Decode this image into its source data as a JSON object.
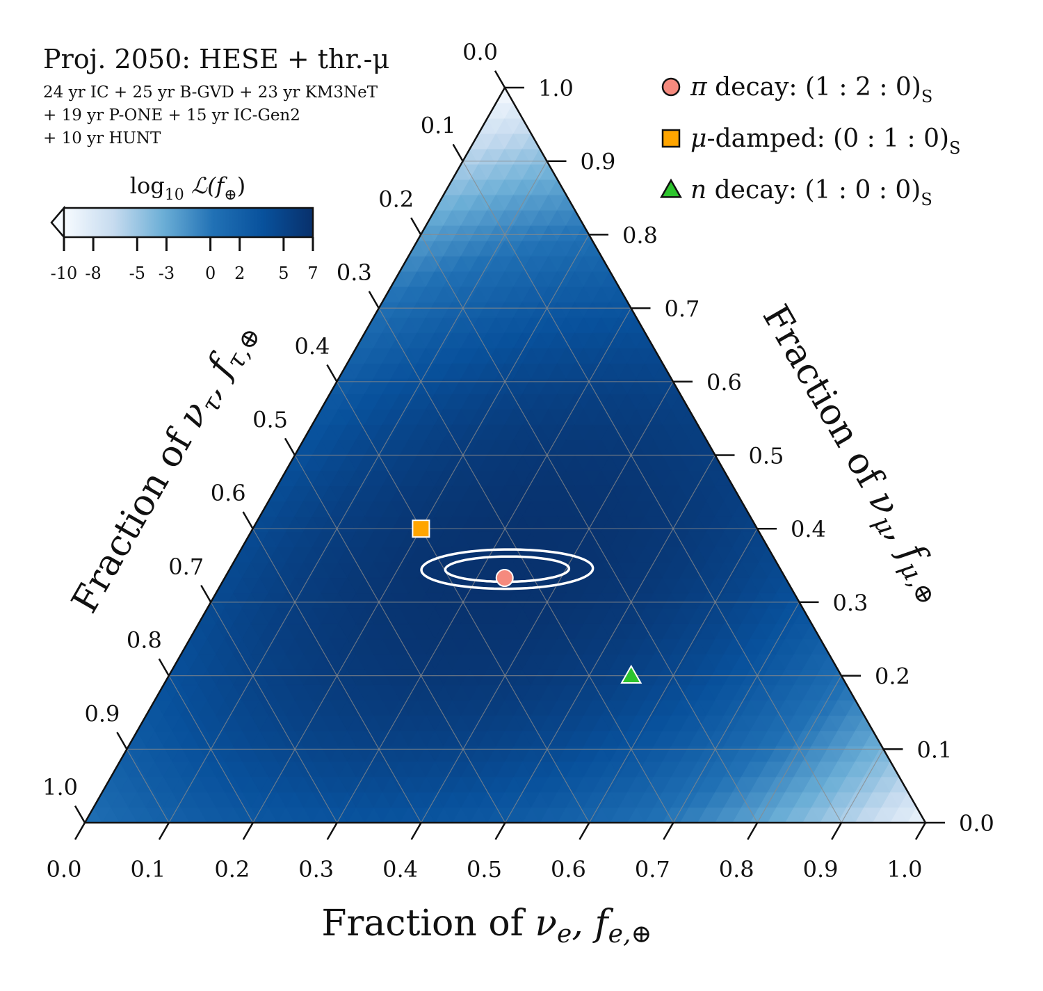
{
  "chart_data": {
    "type": "ternary",
    "title": "Proj. 2050: HESE + thr.-μ",
    "subtitle_lines": [
      "24 yr IC + 25 yr B-GVD + 23 yr KM3NeT",
      "+ 19 yr P-ONE + 15 yr IC-Gen2",
      "+ 10 yr HUNT"
    ],
    "axes": {
      "bottom": {
        "prefix": "Fraction of ",
        "symbol": "ν",
        "sub": "e",
        "mid": ", f",
        "sub2": "e,⊕",
        "range": [
          0,
          1
        ]
      },
      "right": {
        "prefix": "Fraction of ",
        "symbol": "ν",
        "sub": "μ",
        "mid": ", f",
        "sub2": "μ,⊕",
        "range": [
          0,
          1
        ]
      },
      "left": {
        "prefix": "Fraction of ",
        "symbol": "ν",
        "sub": "τ",
        "mid": ", f",
        "sub2": "τ,⊕",
        "range": [
          0,
          1
        ]
      }
    },
    "tick_labels": [
      "0.0",
      "0.1",
      "0.2",
      "0.3",
      "0.4",
      "0.5",
      "0.6",
      "0.7",
      "0.8",
      "0.9",
      "1.0"
    ],
    "colorbar": {
      "title_prefix": "log",
      "title_sub": "10",
      "title_rest": " ℒ(f",
      "title_sub2": "⊕",
      "title_end": ")",
      "range": [
        -10,
        7
      ],
      "ticks": [
        -10,
        -8,
        -5,
        -3,
        0,
        2,
        5,
        7
      ],
      "tick_labels": [
        "-10",
        "-8",
        "-5",
        "-3",
        "0",
        "2",
        "5",
        "7"
      ],
      "colors": [
        "#f7fbff",
        "#c6dbef",
        "#6baed6",
        "#2171b5",
        "#08519c",
        "#08306b"
      ]
    },
    "markers": [
      {
        "name": "pi-decay",
        "label_sym": "π",
        "label_text": " decay: (1 : 2 : 0)",
        "label_sub": "S",
        "shape": "circle",
        "color": "#f58a7e",
        "fe": 0.333,
        "fmu": 0.333,
        "ftau": 0.333
      },
      {
        "name": "mu-damped",
        "label_sym": "μ",
        "label_text": "-damped: (0 : 1 : 0)",
        "label_sub": "S",
        "shape": "square",
        "color": "#ffa500",
        "fe": 0.2,
        "fmu": 0.4,
        "ftau": 0.4
      },
      {
        "name": "n-decay",
        "label_sym": "n",
        "label_text": " decay: (1 : 0 : 0)",
        "label_sub": "S",
        "shape": "triangle",
        "color": "#2dc42d",
        "fe": 0.55,
        "fmu": 0.2,
        "ftau": 0.25
      }
    ],
    "contours": [
      {
        "name": "contour-68",
        "center": {
          "fe": 0.33,
          "fmu": 0.345,
          "ftau": 0.325
        },
        "half_width": 0.07,
        "half_height": 0.018
      },
      {
        "name": "contour-95",
        "center": {
          "fe": 0.33,
          "fmu": 0.345,
          "ftau": 0.325
        },
        "half_width": 0.097,
        "half_height": 0.028
      }
    ],
    "likelihood_peak": {
      "fe": 0.33,
      "fmu": 0.35,
      "ftau": 0.32
    }
  }
}
